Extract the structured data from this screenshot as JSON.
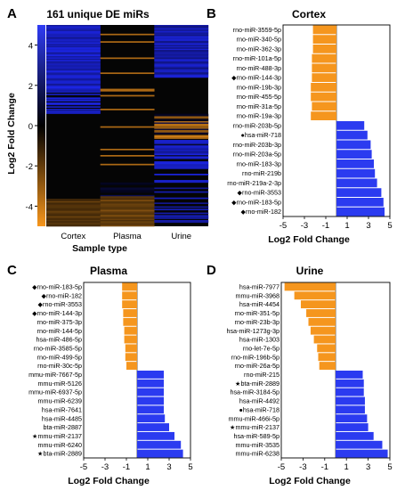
{
  "colors": {
    "up": "#2b3bf0",
    "down": "#f5961e",
    "heat_bg": "#050505"
  },
  "chart_data": [
    {
      "panel": "A",
      "type": "heatmap",
      "title": "161 unique DE miRs",
      "xlabel": "Sample type",
      "ylabel": "Log2 Fold Change",
      "categories": [
        "Cortex",
        "Plasma",
        "Urine"
      ],
      "colorbar_ticks": [
        4,
        2,
        0,
        -2,
        -4
      ],
      "colorbar_range": [
        -5,
        5
      ],
      "rows": 161
    },
    {
      "panel": "B",
      "type": "bar",
      "orientation": "horizontal",
      "title": "Cortex",
      "xlabel": "Log2 Fold Change",
      "xlim": [
        -5,
        5
      ],
      "xticks": [
        "-5",
        "-3",
        "-1",
        "1",
        "3",
        "5"
      ],
      "labels": [
        "rno-miR-3559-5p",
        "rno-miR-340-5p",
        "rno-miR-362-3p",
        "rno-miR-101a-5p",
        "rno-miR-488-3p",
        "rno-miR-144-3p",
        "rno-miR-19b-3p",
        "rno-miR-455-5p",
        "rno-miR-31a-5p",
        "rno-miR-19a-3p",
        "rno-miR-203b-5p",
        "hsa-miR-718",
        "rno-miR-203b-3p",
        "rno-miR-203a-5p",
        "rno-miR-183-3p",
        "rno-miR-219b",
        "rno-miR-219a-2-3p",
        "rno-miR-3553",
        "rno-miR-183-5p",
        "rno-miR-182"
      ],
      "markers": [
        "",
        "",
        "",
        "",
        "",
        "◆",
        "",
        "",
        "",
        "",
        "",
        "●",
        "",
        "",
        "",
        "",
        "",
        "◆",
        "◆",
        "◆"
      ],
      "values": [
        -2.2,
        -2.2,
        -2.2,
        -2.3,
        -2.3,
        -2.3,
        -2.4,
        -2.4,
        -2.3,
        -2.4,
        2.6,
        2.9,
        3.2,
        3.3,
        3.5,
        3.6,
        3.8,
        4.2,
        4.4,
        4.5
      ]
    },
    {
      "panel": "C",
      "type": "bar",
      "orientation": "horizontal",
      "title": "Plasma",
      "xlabel": "Log2 Fold Change",
      "xlim": [
        -5,
        5
      ],
      "xticks": [
        "-5",
        "-3",
        "-1",
        "1",
        "3",
        "5"
      ],
      "labels": [
        "rno-miR-183-5p",
        "rno-miR-182",
        "rno-miR-3553",
        "rno-miR-144-3p",
        "rno-miR-375-3p",
        "rno-miR-144-5p",
        "hsa-miR-486-5p",
        "rno-miR-3585-5p",
        "rno-miR-499-5p",
        "rno-miR-30c-5p",
        "mmu-miR-7667-5p",
        "mmu-miR-5126",
        "mmu-miR-6937-5p",
        "mmu-miR-6239",
        "hsa-miR-7641",
        "hsa-miR-4485",
        "bta-miR-2887",
        "mmu-miR-2137",
        "mmu-miR-6240",
        "bta-miR-2889"
      ],
      "markers": [
        "◆",
        "◆",
        "◆",
        "◆",
        "",
        "",
        "",
        "",
        "",
        "",
        "",
        "",
        "",
        "",
        "",
        "",
        "",
        "★",
        "",
        "★"
      ],
      "values": [
        -1.4,
        -1.4,
        -1.4,
        -1.3,
        -1.3,
        -1.2,
        -1.2,
        -1.1,
        -1.1,
        -1.0,
        2.5,
        2.5,
        2.5,
        2.5,
        2.5,
        2.6,
        3.0,
        3.5,
        4.1,
        4.3
      ]
    },
    {
      "panel": "D",
      "type": "bar",
      "orientation": "horizontal",
      "title": "Urine",
      "xlabel": "Log2 Fold Change",
      "xlim": [
        -5,
        5
      ],
      "xticks": [
        "-5",
        "-3",
        "-1",
        "1",
        "3",
        "5"
      ],
      "labels": [
        "hsa-miR-7977",
        "mmu-miR-3968",
        "hsa-miR-4454",
        "rno-miR-351-5p",
        "rno-miR-23b-3p",
        "hsa-miR-1273g-3p",
        "hsa-miR-1303",
        "rno-let-7e-5p",
        "rno-miR-196b-5p",
        "rno-miR-26a-5p",
        "rno-miR-215",
        "bta-miR-2889",
        "hsa-miR-3184-5p",
        "hsa-miR-4492",
        "hsa-miR-718",
        "mmu-miR-466i-5p",
        "mmu-miR-2137",
        "hsa-miR-589-5p",
        "mmu-miR-3535",
        "mmu-miR-6238"
      ],
      "markers": [
        "",
        "",
        "",
        "",
        "",
        "",
        "",
        "",
        "",
        "",
        "",
        "★",
        "",
        "",
        "●",
        "",
        "★",
        "",
        "",
        ""
      ],
      "values": [
        -4.7,
        -3.8,
        -3.2,
        -2.7,
        -2.5,
        -2.3,
        -2.0,
        -1.7,
        -1.6,
        -1.5,
        2.5,
        2.6,
        2.6,
        2.7,
        2.7,
        2.9,
        3.0,
        3.5,
        4.3,
        4.8
      ]
    }
  ]
}
